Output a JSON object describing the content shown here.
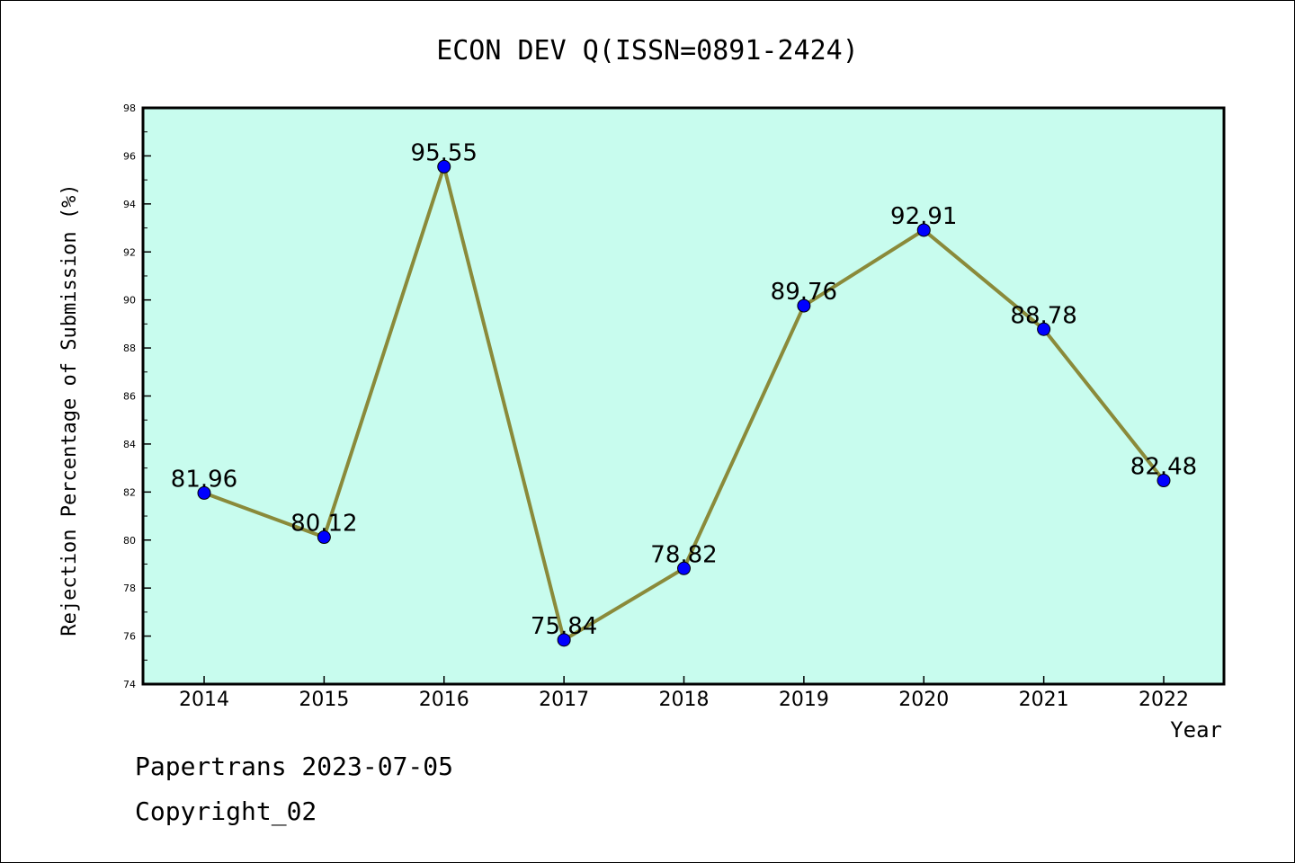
{
  "chart_data": {
    "type": "line",
    "title": "ECON DEV Q(ISSN=0891-2424)",
    "xlabel": "Year",
    "ylabel": "Rejection Percentage of Submission (%)",
    "categories": [
      "2014",
      "2015",
      "2016",
      "2017",
      "2018",
      "2019",
      "2020",
      "2021",
      "2022"
    ],
    "values": [
      81.96,
      80.12,
      95.55,
      75.84,
      78.82,
      89.76,
      92.91,
      88.78,
      82.48
    ],
    "data_labels": [
      "81.96",
      "80.12",
      "95.55",
      "75.84",
      "78.82",
      "89.76",
      "92.91",
      "88.78",
      "82.48"
    ],
    "ylim": [
      74,
      98
    ],
    "yticks": [
      "74",
      "76",
      "78",
      "80",
      "82",
      "84",
      "86",
      "88",
      "90",
      "92",
      "94",
      "96",
      "98"
    ],
    "grid": false,
    "colors": {
      "plot_background": "#c8fcee",
      "line": "#8a8a3a",
      "marker": "#0000ff"
    }
  },
  "footer": {
    "line1": "Papertrans 2023-07-05",
    "line2": "Copyright_02"
  }
}
